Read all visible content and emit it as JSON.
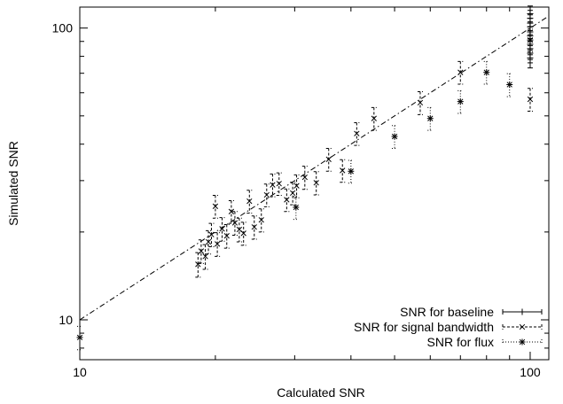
{
  "chart_data": {
    "type": "scatter",
    "title": "",
    "xlabel": "Calculated SNR",
    "ylabel": "Simulated SNR",
    "x_scale": "log",
    "y_scale": "log",
    "xlim": [
      10,
      110
    ],
    "ylim": [
      7.3,
      118
    ],
    "x_ticks": [
      {
        "value": 10,
        "label": "10"
      },
      {
        "value": 100,
        "label": "100"
      }
    ],
    "y_ticks": [
      {
        "value": 10,
        "label": "10"
      },
      {
        "value": 100,
        "label": "100"
      }
    ],
    "grid": false,
    "legend_position": "bottom-right",
    "reference_line": {
      "style": "dash-dot",
      "from": [
        10,
        10
      ],
      "to": [
        110,
        110
      ]
    },
    "series": [
      {
        "name": "SNR for baseline",
        "marker": "plus",
        "line_style": "solid",
        "points": [
          {
            "x": 100,
            "y": 112,
            "err": 7
          },
          {
            "x": 100,
            "y": 108,
            "err": 7
          },
          {
            "x": 100,
            "y": 104,
            "err": 7
          },
          {
            "x": 100,
            "y": 101,
            "err": 7
          },
          {
            "x": 100,
            "y": 97,
            "err": 7
          },
          {
            "x": 100,
            "y": 94,
            "err": 7
          },
          {
            "x": 100,
            "y": 91,
            "err": 7
          },
          {
            "x": 100,
            "y": 88,
            "err": 7
          },
          {
            "x": 100,
            "y": 85,
            "err": 7
          },
          {
            "x": 100,
            "y": 82,
            "err": 6
          },
          {
            "x": 100,
            "y": 79,
            "err": 6
          }
        ]
      },
      {
        "name": "SNR for signal bandwidth",
        "marker": "x",
        "line_style": "dashed",
        "points": [
          {
            "x": 18.3,
            "y": 15.5,
            "err": 1.5
          },
          {
            "x": 18.6,
            "y": 17.2,
            "err": 1.6
          },
          {
            "x": 19.0,
            "y": 16.5,
            "err": 1.6
          },
          {
            "x": 19.3,
            "y": 18.5,
            "err": 1.7
          },
          {
            "x": 19.6,
            "y": 19.6,
            "err": 1.8
          },
          {
            "x": 20.0,
            "y": 24.5,
            "err": 2.2
          },
          {
            "x": 20.2,
            "y": 18.2,
            "err": 1.7
          },
          {
            "x": 20.7,
            "y": 20.5,
            "err": 1.9
          },
          {
            "x": 21.2,
            "y": 19.4,
            "err": 1.8
          },
          {
            "x": 21.7,
            "y": 23.5,
            "err": 2.1
          },
          {
            "x": 22.1,
            "y": 21.5,
            "err": 2.0
          },
          {
            "x": 22.6,
            "y": 20.4,
            "err": 1.9
          },
          {
            "x": 23.1,
            "y": 19.8,
            "err": 1.8
          },
          {
            "x": 23.8,
            "y": 25.5,
            "err": 2.3
          },
          {
            "x": 24.4,
            "y": 20.8,
            "err": 1.9
          },
          {
            "x": 25.3,
            "y": 22.0,
            "err": 2.0
          },
          {
            "x": 26.0,
            "y": 26.8,
            "err": 2.4
          },
          {
            "x": 26.8,
            "y": 29.0,
            "err": 2.6
          },
          {
            "x": 27.7,
            "y": 29.3,
            "err": 2.6
          },
          {
            "x": 28.8,
            "y": 25.8,
            "err": 2.3
          },
          {
            "x": 29.7,
            "y": 27.2,
            "err": 2.4
          },
          {
            "x": 30.3,
            "y": 28.8,
            "err": 2.6
          },
          {
            "x": 31.6,
            "y": 30.8,
            "err": 2.8
          },
          {
            "x": 33.5,
            "y": 29.5,
            "err": 2.7
          },
          {
            "x": 35.7,
            "y": 35.5,
            "err": 3.2
          },
          {
            "x": 38.3,
            "y": 32.5,
            "err": 2.9
          },
          {
            "x": 41.2,
            "y": 43.5,
            "err": 3.9
          },
          {
            "x": 45.0,
            "y": 49.0,
            "err": 4.4
          },
          {
            "x": 57.0,
            "y": 55.5,
            "err": 5.0
          },
          {
            "x": 70.0,
            "y": 70.5,
            "err": 6.3
          },
          {
            "x": 100,
            "y": 91.0,
            "err": 8.2
          },
          {
            "x": 100,
            "y": 57.0,
            "err": 5.1
          }
        ]
      },
      {
        "name": "SNR for flux",
        "marker": "star",
        "line_style": "dotted",
        "points": [
          {
            "x": 10.0,
            "y": 8.7,
            "err": 0.8
          },
          {
            "x": 30.2,
            "y": 24.3,
            "err": 2.2
          },
          {
            "x": 40.0,
            "y": 32.3,
            "err": 2.9
          },
          {
            "x": 50.0,
            "y": 42.5,
            "err": 3.8
          },
          {
            "x": 60.0,
            "y": 49.0,
            "err": 4.4
          },
          {
            "x": 70.0,
            "y": 56.0,
            "err": 5.0
          },
          {
            "x": 80.0,
            "y": 70.5,
            "err": 6.3
          },
          {
            "x": 90.0,
            "y": 64.0,
            "err": 5.8
          }
        ]
      }
    ]
  }
}
